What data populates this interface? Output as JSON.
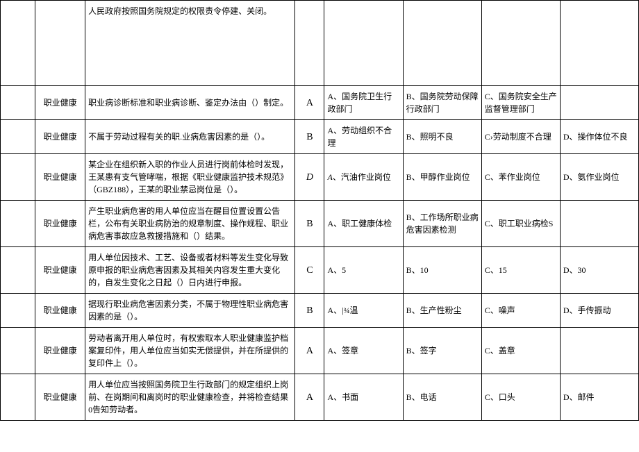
{
  "rows": [
    {
      "category": "",
      "question": "人民政府按照国务院规定的权限责令停建、关闭。",
      "answer": "",
      "optA": "",
      "optB": "",
      "optC": "",
      "optD": "",
      "tall": true
    },
    {
      "category": "职业健康",
      "question": "职业病诊断标准和职业病诊断、鉴定办法由（）制定。",
      "answer": "A",
      "optA": "A、国务院卫生行政部门",
      "optB": "B、国务院劳动保障行政部门",
      "optC": "C、国务院安全生产监督管理部门",
      "optD": ""
    },
    {
      "category": "职业健康",
      "question": "不属于劳动过程有关的职.业病危害因素的是（）。",
      "answer": "B",
      "optA": "A、劳动组织不合理",
      "optB": "B、照明不良",
      "optC": "C›劳动制度不合理",
      "optD": "D、操作体位不良"
    },
    {
      "category": "职业健康",
      "question": "某企业在组织新入职的作业人员进行岗前体检时发现，王某患有支气管哮喘，根据《职业健康监护技术规范》（GBZ188），王某的职业禁忌岗位是（）。",
      "answer": "D",
      "answerItalic": true,
      "optA": "A、汽油作业岗位",
      "optAItalic": true,
      "optB": "B、甲醇作业岗位",
      "optC": "C、苯作业岗位",
      "optD": "D、氨作业岗位"
    },
    {
      "category": "职业健康",
      "question": "产生职业病危害的用人单位应当在醒目位置设置公告栏，公布有关职业病防治的规章制度、操作规程、职业病危害事故应急救援措施和（）结果。",
      "answer": "B",
      "optA": "A、职工健康体检",
      "optB": "B、工作场所职业病危害因素检测",
      "optC": "C、职工职业病检S",
      "optD": ""
    },
    {
      "category": "职业健康",
      "question": "用人单位因技术、工艺、设备或者材料等发生变化导致原申报的职业病危害因素及其相关内容发生重大变化的，自发生变化之日起（）日内进行申报。",
      "answer": "C",
      "optA": "A、5",
      "optB": "B、10",
      "optC": "C、15",
      "optD": "D、30"
    },
    {
      "category": "职业健康",
      "question": "据现行职业病危害因素分类，不属于物理性职业病危害因素的是（）。",
      "answer": "B",
      "optA": "A、|¾温",
      "optB": "B、生产性粉尘",
      "optC": "C、噪声",
      "optD": "D、手传振动"
    },
    {
      "category": "职业健康",
      "question": "劳动者离开用人单位时，有权索取本人职业健康监护档案复印件，用人单位应当如实无偿提供，并在所提供的复印件上（）。",
      "answer": "A",
      "optA": "A、签章",
      "optB": "B、签字",
      "optC": "C、盖章",
      "optD": ""
    },
    {
      "category": "职业健康",
      "question": "用人单位应当按照国务院卫生行政部门的规定组织上岗前、在岗期间和离岗时的职业健康检查，并将检查结果0告知劳动者。",
      "answer": "A",
      "optA": "A、书面",
      "optB": "B、电话",
      "optC": "C、口头",
      "optD": "D、邮件"
    }
  ]
}
